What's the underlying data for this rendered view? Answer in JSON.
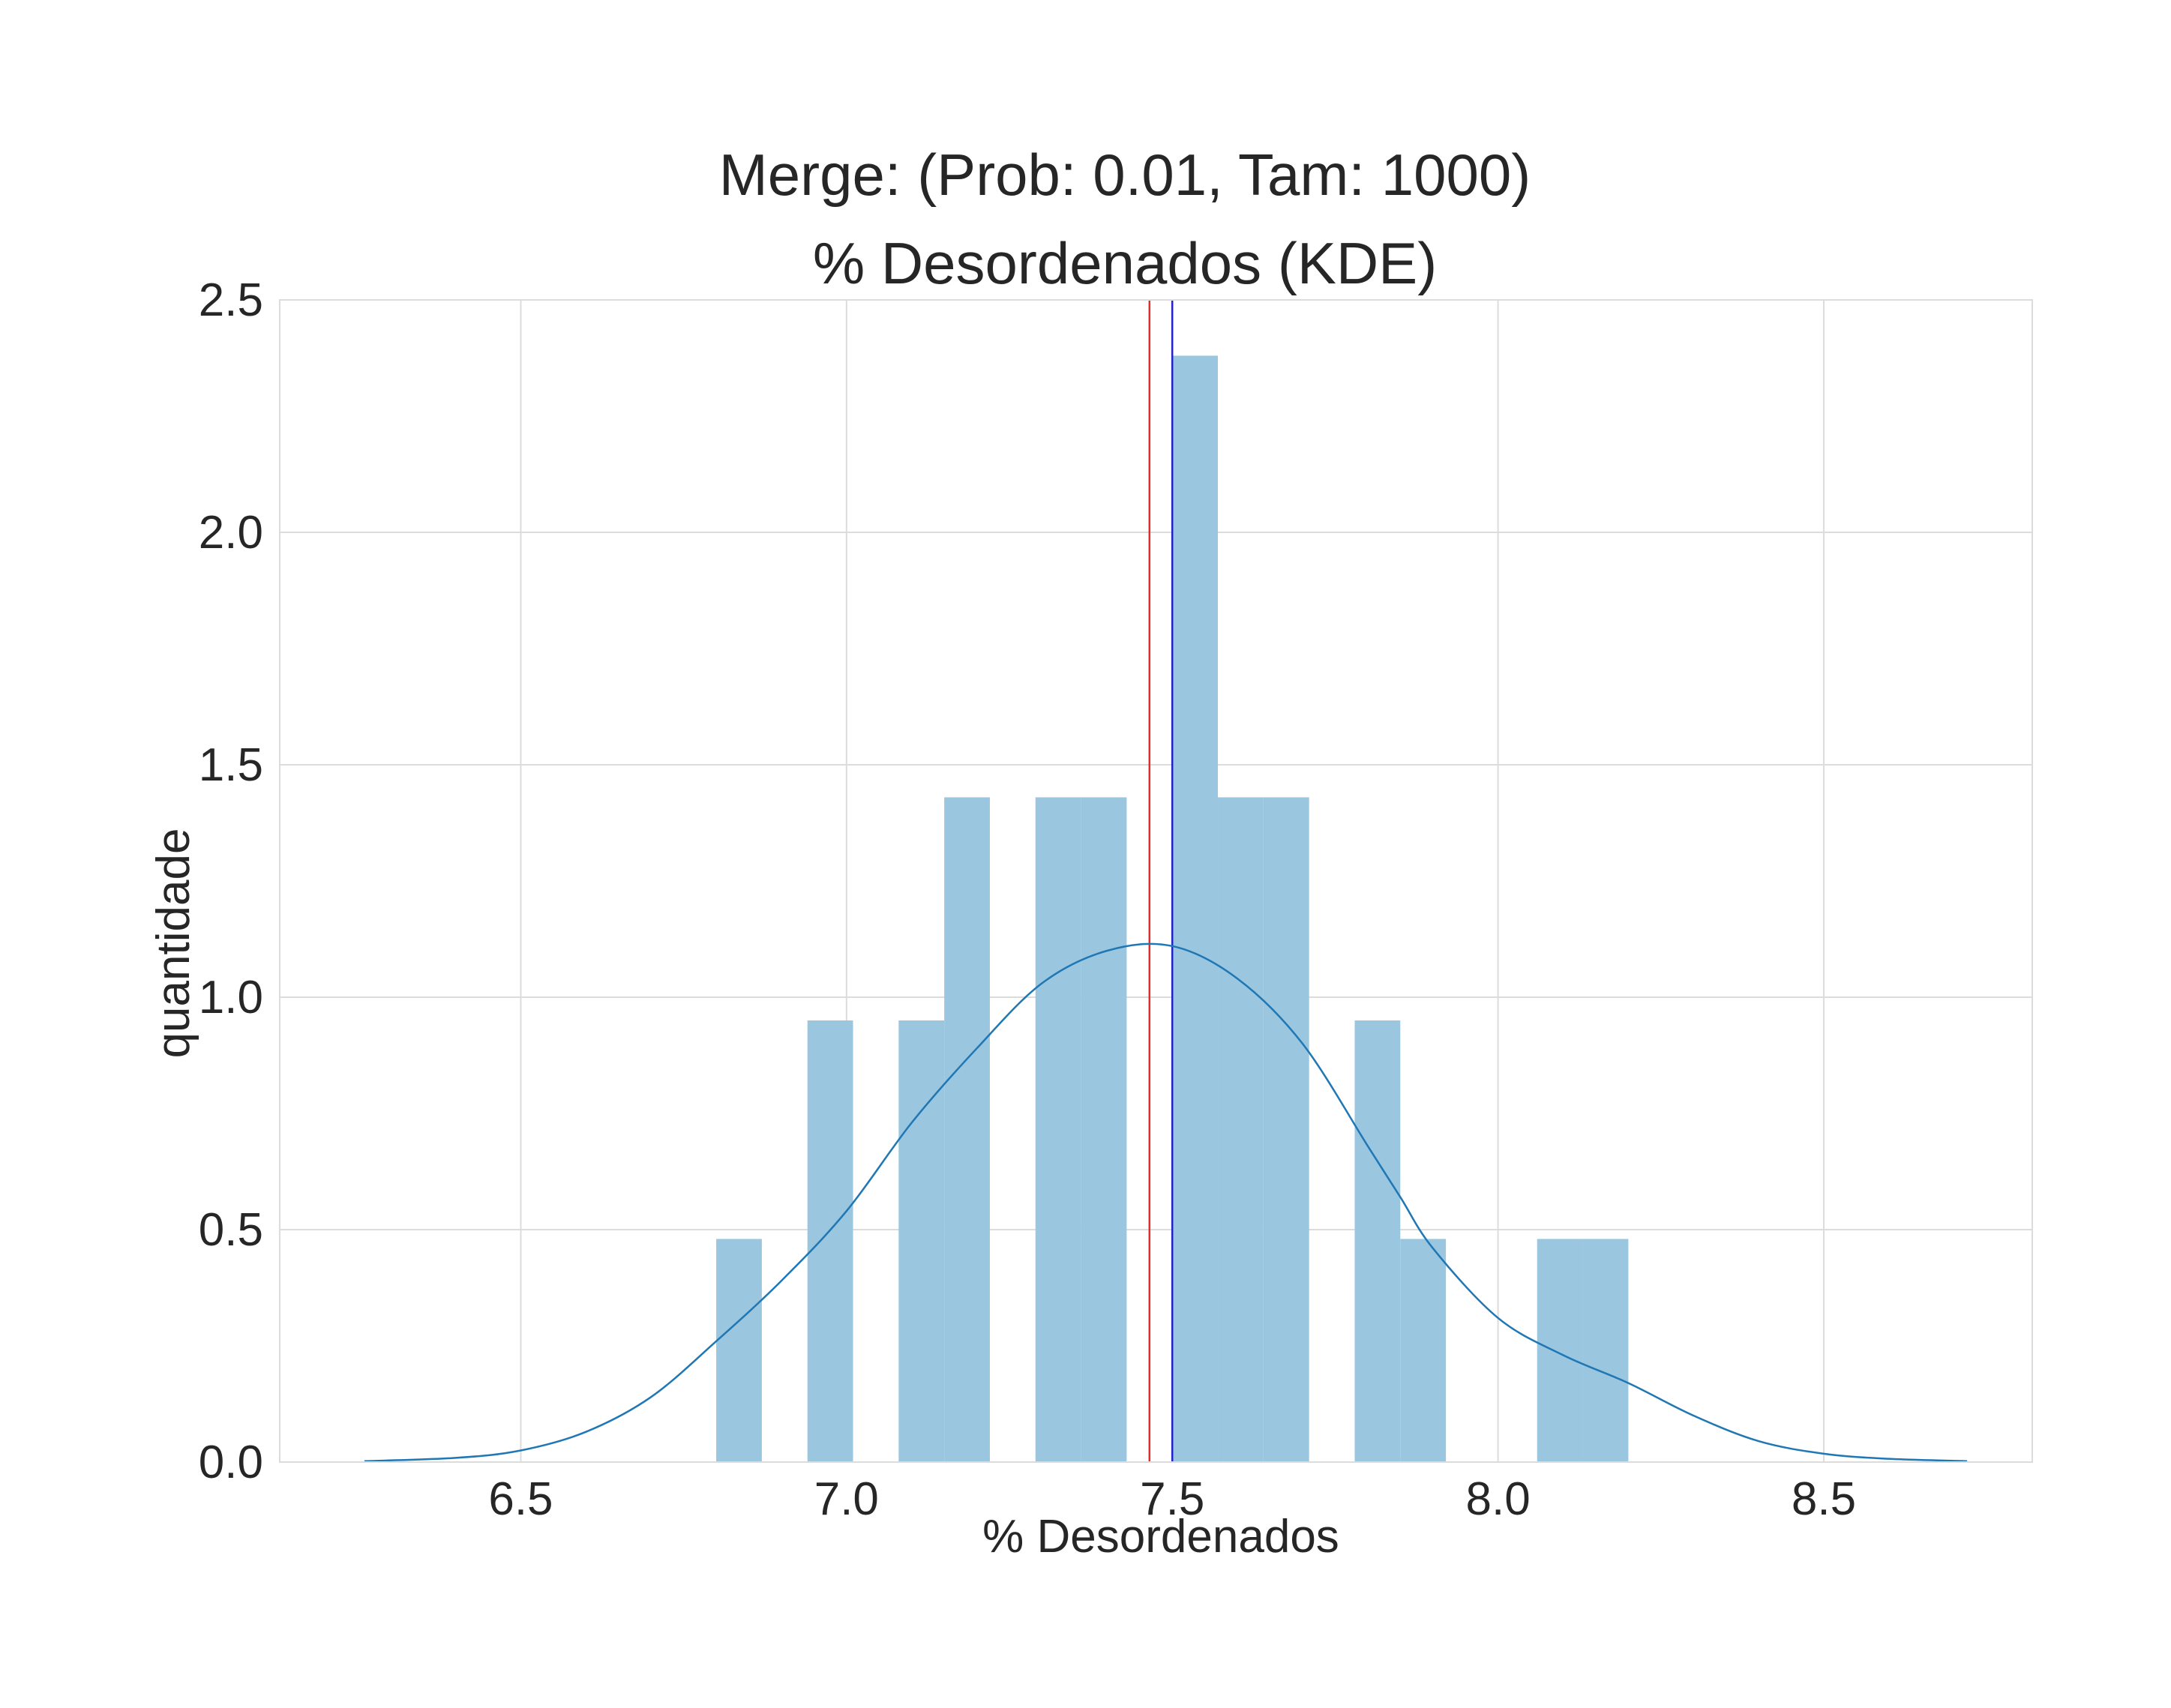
{
  "chart_data": {
    "type": "bar",
    "title_line1": "Merge: (Prob: 0.01, Tam: 1000)",
    "title_line2": "% Desordenados (KDE)",
    "xlabel": "% Desordenados",
    "ylabel": "quantidade",
    "xlim": [
      6.13,
      8.82
    ],
    "ylim": [
      0,
      2.5
    ],
    "x_ticks": [
      6.5,
      7.0,
      7.5,
      8.0,
      8.5
    ],
    "x_tick_labels": [
      "6.5",
      "7.0",
      "7.5",
      "8.0",
      "8.5"
    ],
    "y_ticks": [
      0.0,
      0.5,
      1.0,
      1.5,
      2.0,
      2.5
    ],
    "y_tick_labels": [
      "0.0",
      "0.5",
      "1.0",
      "1.5",
      "2.0",
      "2.5"
    ],
    "grid": true,
    "histogram": {
      "bin_edges": [
        6.8,
        6.87,
        6.94,
        7.01,
        7.08,
        7.15,
        7.22,
        7.29,
        7.36,
        7.43,
        7.5,
        7.57,
        7.64,
        7.71,
        7.78,
        7.85,
        7.92,
        7.99,
        8.06,
        8.13,
        8.2
      ],
      "densities": [
        0.48,
        0,
        0.95,
        0,
        0.95,
        1.43,
        0,
        1.43,
        1.43,
        0,
        2.38,
        1.43,
        1.43,
        0,
        0.95,
        0.48,
        0,
        0,
        0.48,
        0.48
      ],
      "color": "#9ac6e0"
    },
    "kde": {
      "color": "#1f77b4",
      "x": [
        6.26,
        6.4,
        6.5,
        6.6,
        6.7,
        6.8,
        6.9,
        7.0,
        7.1,
        7.2,
        7.3,
        7.4,
        7.5,
        7.6,
        7.7,
        7.8,
        7.85,
        7.9,
        8.0,
        8.1,
        8.2,
        8.3,
        8.4,
        8.5,
        8.6,
        8.72
      ],
      "y": [
        0.002,
        0.009,
        0.025,
        0.065,
        0.14,
        0.26,
        0.39,
        0.54,
        0.73,
        0.89,
        1.03,
        1.1,
        1.11,
        1.04,
        0.9,
        0.68,
        0.57,
        0.46,
        0.31,
        0.23,
        0.17,
        0.1,
        0.045,
        0.018,
        0.007,
        0.002
      ]
    },
    "vlines": [
      {
        "name": "red-vline",
        "x": 7.465,
        "color": "#e32b2b"
      },
      {
        "name": "blue-vline",
        "x": 7.5,
        "color": "#2323c8"
      }
    ],
    "background_color": "#ffffff",
    "grid_color": "#dcdcdc"
  }
}
